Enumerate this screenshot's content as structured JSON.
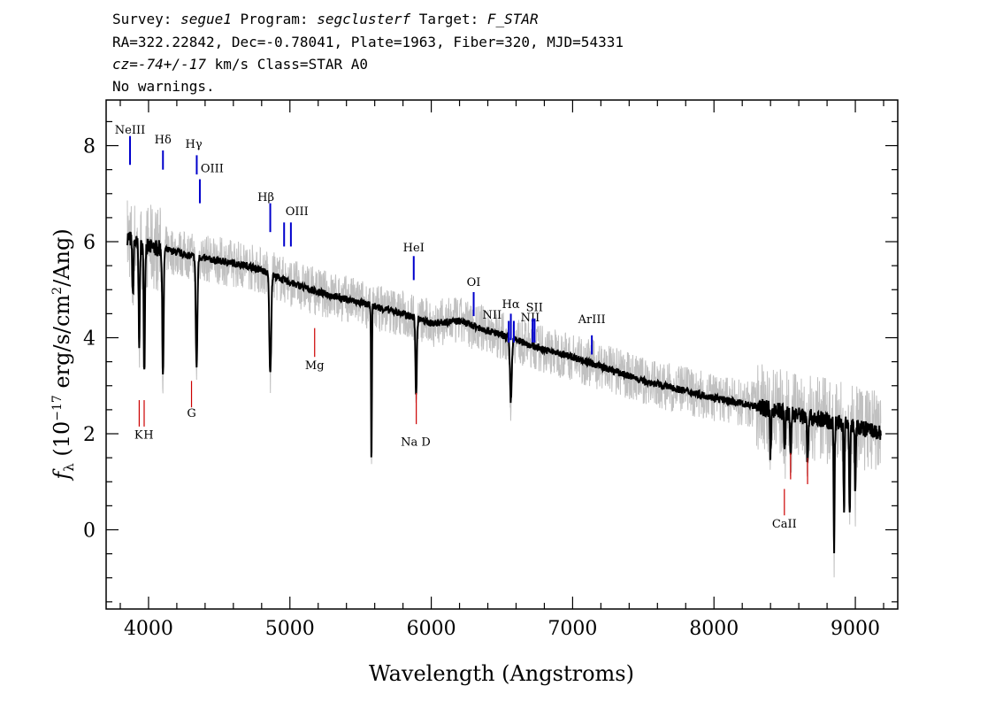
{
  "header": {
    "line1": {
      "a": "Survey: ",
      "survey": "segue1",
      "b": " Program: ",
      "program": "segclusterf",
      "c": " Target: ",
      "target": "F_STAR"
    },
    "line2": "RA=322.22842, Dec=-0.78041, Plate=1963, Fiber=320, MJD=54331",
    "line3": {
      "cz": "cz=-74+/-17",
      "rest": " km/s Class=STAR A0"
    },
    "line4": "No warnings."
  },
  "chart_data": {
    "type": "line",
    "xlabel": "Wavelength (Angstroms)",
    "ylabel": {
      "f": "f",
      "sub": "λ",
      "pre": " (10",
      "sup1": "−17",
      "mid": " erg/s/cm",
      "sup2": "2",
      "post": "/Ang)"
    },
    "xlim": [
      3700,
      9300
    ],
    "ylim": [
      -1.65,
      8.95
    ],
    "x_ticks": [
      4000,
      5000,
      6000,
      7000,
      8000,
      9000
    ],
    "y_ticks": [
      0,
      2,
      4,
      6,
      8
    ],
    "colors": {
      "flux": "#000000",
      "raw": "#c0c0c0",
      "emission": "#0000cc",
      "absorption": "#cc0000"
    },
    "continuum": [
      [
        3850,
        6.1
      ],
      [
        3950,
        5.9
      ],
      [
        4100,
        5.85
      ],
      [
        4300,
        5.7
      ],
      [
        4500,
        5.6
      ],
      [
        4700,
        5.5
      ],
      [
        4800,
        5.4
      ],
      [
        5000,
        5.15
      ],
      [
        5200,
        4.95
      ],
      [
        5400,
        4.8
      ],
      [
        5600,
        4.65
      ],
      [
        5800,
        4.5
      ],
      [
        6000,
        4.3
      ],
      [
        6200,
        4.35
      ],
      [
        6400,
        4.15
      ],
      [
        6600,
        3.95
      ],
      [
        6800,
        3.75
      ],
      [
        7000,
        3.6
      ],
      [
        7200,
        3.4
      ],
      [
        7500,
        3.1
      ],
      [
        8000,
        2.75
      ],
      [
        8500,
        2.45
      ],
      [
        9000,
        2.15
      ],
      [
        9180,
        2.0
      ]
    ],
    "absorption_features": [
      {
        "x": 3889,
        "depth": 1.2,
        "width": 6
      },
      {
        "x": 3934,
        "depth": 2.0,
        "width": 6
      },
      {
        "x": 3970,
        "depth": 2.6,
        "width": 6
      },
      {
        "x": 4102,
        "depth": 2.6,
        "width": 7
      },
      {
        "x": 4340,
        "depth": 2.3,
        "width": 8
      },
      {
        "x": 4861,
        "depth": 2.1,
        "width": 9
      },
      {
        "x": 5577,
        "depth": 3.3,
        "width": 4
      },
      {
        "x": 5893,
        "depth": 1.6,
        "width": 7
      },
      {
        "x": 6563,
        "depth": 1.3,
        "width": 9
      },
      {
        "x": 8400,
        "depth": 1.0,
        "width": 6
      },
      {
        "x": 8500,
        "depth": 0.8,
        "width": 6
      },
      {
        "x": 8542,
        "depth": 0.9,
        "width": 6
      },
      {
        "x": 8662,
        "depth": 0.9,
        "width": 6
      },
      {
        "x": 8850,
        "depth": 2.6,
        "width": 5
      },
      {
        "x": 8920,
        "depth": 1.8,
        "width": 5
      },
      {
        "x": 8960,
        "depth": 1.9,
        "width": 5
      },
      {
        "x": 9000,
        "depth": 1.4,
        "width": 5
      }
    ],
    "emission_lines": [
      {
        "label": "NeIII",
        "x": 3869,
        "y_top": 8.2,
        "y_bot": 7.6,
        "label_y": 8.25,
        "label_x": 3869
      },
      {
        "label": "Hδ",
        "x": 4102,
        "y_top": 7.9,
        "y_bot": 7.5,
        "label_y": 8.05,
        "label_x": 4102
      },
      {
        "label": "Hγ",
        "x": 4341,
        "y_top": 7.8,
        "y_bot": 7.4,
        "label_y": 7.95,
        "label_x": 4320
      },
      {
        "label": "OIII",
        "x": 4363,
        "y_top": 7.3,
        "y_bot": 6.8,
        "label_y": 7.45,
        "label_x": 4450
      },
      {
        "label": "Hβ",
        "x": 4861,
        "y_top": 6.8,
        "y_bot": 6.2,
        "label_y": 6.85,
        "label_x": 4830
      },
      {
        "label": "OIII",
        "x": 4959,
        "y_top": 6.4,
        "y_bot": 5.9,
        "label_y": 6.55,
        "label_x": 5050
      },
      {
        "label": "",
        "x": 5007,
        "y_top": 6.4,
        "y_bot": 5.9,
        "label_y": 6.55,
        "label_x": 5050
      },
      {
        "label": "HeI",
        "x": 5876,
        "y_top": 5.7,
        "y_bot": 5.2,
        "label_y": 5.8,
        "label_x": 5876
      },
      {
        "label": "OI",
        "x": 6300,
        "y_top": 4.95,
        "y_bot": 4.45,
        "label_y": 5.08,
        "label_x": 6300
      },
      {
        "label": "NII",
        "x": 6548,
        "y_top": 4.35,
        "y_bot": 3.9,
        "label_y": 4.4,
        "label_x": 6430
      },
      {
        "label": "Hα",
        "x": 6563,
        "y_top": 4.5,
        "y_bot": 3.95,
        "label_y": 4.62,
        "label_x": 6563
      },
      {
        "label": "NII",
        "x": 6584,
        "y_top": 4.35,
        "y_bot": 3.9,
        "label_y": 4.34,
        "label_x": 6700
      },
      {
        "label": "SII",
        "x": 6717,
        "y_top": 4.4,
        "y_bot": 3.9,
        "label_y": 4.55,
        "label_x": 6730
      },
      {
        "label": "",
        "x": 6731,
        "y_top": 4.4,
        "y_bot": 3.9,
        "label_y": 4.55,
        "label_x": 6730
      },
      {
        "label": "ArIII",
        "x": 7136,
        "y_top": 4.05,
        "y_bot": 3.65,
        "label_y": 4.3,
        "label_x": 7136
      }
    ],
    "absorption_lines": [
      {
        "label": "K",
        "x": 3934,
        "y_top": 2.7,
        "y_bot": 2.15,
        "label_y": 1.9,
        "label_x": 3930
      },
      {
        "label": "H",
        "x": 3969,
        "y_top": 2.7,
        "y_bot": 2.15,
        "label_y": 1.9,
        "label_x": 4000
      },
      {
        "label": "G",
        "x": 4304,
        "y_top": 3.1,
        "y_bot": 2.55,
        "label_y": 2.35,
        "label_x": 4304
      },
      {
        "label": "Mg",
        "x": 5175,
        "y_top": 4.2,
        "y_bot": 3.6,
        "label_y": 3.35,
        "label_x": 5175
      },
      {
        "label": "Na D",
        "x": 5894,
        "y_top": 2.85,
        "y_bot": 2.2,
        "label_y": 1.75,
        "label_x": 5890
      },
      {
        "label": "CaII",
        "x": 8498,
        "y_top": 0.85,
        "y_bot": 0.3,
        "label_y": 0.05,
        "label_x": 8498
      },
      {
        "label": "",
        "x": 8542,
        "y_top": 1.6,
        "y_bot": 1.05,
        "label_y": 0,
        "label_x": 0
      },
      {
        "label": "",
        "x": 8662,
        "y_top": 1.5,
        "y_bot": 0.95,
        "label_y": 0,
        "label_x": 0
      }
    ]
  }
}
